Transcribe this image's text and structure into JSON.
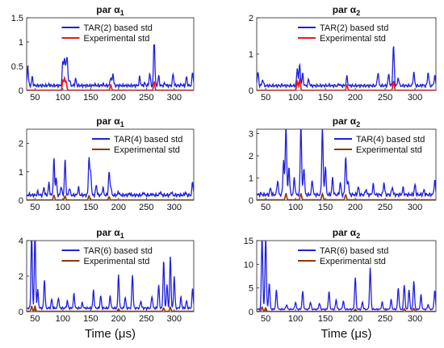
{
  "figure": {
    "xlabel": "Time (μs)",
    "colors": {
      "model": "#1f1fe0",
      "exp_red": "#e8181c",
      "exp_brown": "#8a3a0a",
      "axis": "#222222"
    }
  },
  "chart_data": [
    {
      "type": "line",
      "title": "par α1",
      "xlim": [
        35,
        335
      ],
      "ylim": [
        0,
        1.5
      ],
      "yticks": [
        0,
        0.5,
        1,
        1.5
      ],
      "xticks": [
        50,
        100,
        150,
        200,
        250,
        300
      ],
      "legend": {
        "position": "top-center",
        "entries": [
          "TAR(2) based std",
          "Experimental std"
        ]
      },
      "series": [
        {
          "name": "TAR(2) based std",
          "color": "#1f1fe0",
          "baseline": 0.1,
          "peaks": [
            [
              37,
              0.5
            ],
            [
              45,
              0.28
            ],
            [
              55,
              0.1
            ],
            [
              75,
              0.12
            ],
            [
              100,
              0.6
            ],
            [
              103,
              0.65
            ],
            [
              106,
              0.5
            ],
            [
              108,
              0.55
            ],
            [
              112,
              0.22
            ],
            [
              123,
              0.24
            ],
            [
              130,
              0.1
            ],
            [
              157,
              0.12
            ],
            [
              172,
              0.13
            ],
            [
              186,
              0.28
            ],
            [
              190,
              0.35
            ],
            [
              212,
              0.1
            ],
            [
              238,
              0.28
            ],
            [
              247,
              0.15
            ],
            [
              256,
              0.35
            ],
            [
              264,
              1.12
            ],
            [
              272,
              0.3
            ],
            [
              283,
              0.15
            ],
            [
              298,
              0.35
            ],
            [
              313,
              0.12
            ],
            [
              322,
              0.28
            ],
            [
              333,
              0.38
            ]
          ]
        },
        {
          "name": "Experimental std",
          "color": "#e8181c",
          "baseline": 0.005,
          "peaks": [
            [
              100,
              0.2
            ],
            [
              103,
              0.25
            ],
            [
              106,
              0.18
            ],
            [
              186,
              0.12
            ],
            [
              264,
              0.18
            ]
          ]
        }
      ]
    },
    {
      "type": "line",
      "title": "par α2",
      "xlim": [
        35,
        335
      ],
      "ylim": [
        0,
        2
      ],
      "yticks": [
        0,
        1,
        2
      ],
      "xticks": [
        50,
        100,
        150,
        200,
        250,
        300
      ],
      "legend": {
        "position": "top-center",
        "entries": [
          "TAR(2) based std",
          "Experimental std"
        ]
      },
      "series": [
        {
          "name": "TAR(2) based std",
          "color": "#1f1fe0",
          "baseline": 0.13,
          "peaks": [
            [
              37,
              0.5
            ],
            [
              45,
              0.3
            ],
            [
              78,
              0.15
            ],
            [
              103,
              0.6
            ],
            [
              107,
              0.7
            ],
            [
              112,
              0.45
            ],
            [
              122,
              0.3
            ],
            [
              157,
              0.15
            ],
            [
              173,
              0.18
            ],
            [
              186,
              0.38
            ],
            [
              212,
              0.12
            ],
            [
              238,
              0.5
            ],
            [
              256,
              0.45
            ],
            [
              264,
              1.25
            ],
            [
              272,
              0.35
            ],
            [
              298,
              0.5
            ],
            [
              313,
              0.15
            ],
            [
              322,
              0.5
            ],
            [
              333,
              0.4
            ]
          ]
        },
        {
          "name": "Experimental std",
          "color": "#e8181c",
          "baseline": 0.005,
          "peaks": [
            [
              103,
              0.25
            ],
            [
              107,
              0.3
            ],
            [
              186,
              0.15
            ],
            [
              264,
              0.25
            ]
          ]
        }
      ]
    },
    {
      "type": "line",
      "title": "par α1",
      "xlim": [
        35,
        335
      ],
      "ylim": [
        0,
        2.5
      ],
      "yticks": [
        0,
        1,
        2
      ],
      "xticks": [
        50,
        100,
        150,
        200,
        250,
        300
      ],
      "legend": {
        "position": "top-right",
        "entries": [
          "TAR(4) based std",
          "Experimental std"
        ]
      },
      "series": [
        {
          "name": "TAR(4) based std",
          "color": "#1f1fe0",
          "baseline": 0.18,
          "peaks": [
            [
              40,
              0.2
            ],
            [
              55,
              0.3
            ],
            [
              66,
              0.45
            ],
            [
              75,
              0.6
            ],
            [
              84,
              1.45
            ],
            [
              88,
              0.8
            ],
            [
              97,
              0.5
            ],
            [
              104,
              1.42
            ],
            [
              112,
              0.45
            ],
            [
              128,
              0.45
            ],
            [
              147,
              1.52
            ],
            [
              150,
              1.0
            ],
            [
              160,
              0.55
            ],
            [
              172,
              0.45
            ],
            [
              183,
              1.0
            ],
            [
              186,
              0.5
            ],
            [
              200,
              0.3
            ],
            [
              220,
              0.25
            ],
            [
              245,
              0.28
            ],
            [
              260,
              0.22
            ],
            [
              275,
              0.3
            ],
            [
              295,
              0.3
            ],
            [
              320,
              0.28
            ],
            [
              333,
              0.65
            ]
          ]
        },
        {
          "name": "Experimental std",
          "color": "#8a3a0a",
          "baseline": 0.01,
          "peaks": [
            [
              84,
              0.18
            ],
            [
              104,
              0.15
            ],
            [
              147,
              0.16
            ],
            [
              183,
              0.12
            ]
          ]
        }
      ]
    },
    {
      "type": "line",
      "title": "par α2",
      "xlim": [
        35,
        335
      ],
      "ylim": [
        0,
        3.2
      ],
      "yticks": [
        0,
        1,
        2,
        3
      ],
      "xticks": [
        50,
        100,
        150,
        200,
        250,
        300
      ],
      "legend": {
        "position": "top-right",
        "entries": [
          "TAR(4) based std",
          "Experimental std"
        ]
      },
      "series": [
        {
          "name": "TAR(4) based std",
          "color": "#1f1fe0",
          "baseline": 0.25,
          "peaks": [
            [
              42,
              0.3
            ],
            [
              58,
              0.55
            ],
            [
              70,
              0.9
            ],
            [
              80,
              1.8
            ],
            [
              84,
              3.4
            ],
            [
              89,
              1.5
            ],
            [
              98,
              1.0
            ],
            [
              109,
              3.4
            ],
            [
              114,
              1.5
            ],
            [
              128,
              0.9
            ],
            [
              145,
              3.3
            ],
            [
              150,
              1.5
            ],
            [
              162,
              1.0
            ],
            [
              175,
              0.8
            ],
            [
              184,
              2.0
            ],
            [
              188,
              0.9
            ],
            [
              205,
              0.6
            ],
            [
              218,
              0.5
            ],
            [
              230,
              0.7
            ],
            [
              248,
              0.8
            ],
            [
              262,
              0.6
            ],
            [
              280,
              0.55
            ],
            [
              300,
              0.7
            ],
            [
              315,
              0.45
            ],
            [
              333,
              0.9
            ]
          ]
        },
        {
          "name": "Experimental std",
          "color": "#8a3a0a",
          "baseline": 0.02,
          "peaks": [
            [
              84,
              0.3
            ],
            [
              109,
              0.3
            ],
            [
              145,
              0.3
            ],
            [
              184,
              0.25
            ]
          ]
        }
      ]
    },
    {
      "type": "line",
      "title": "par α1",
      "xlim": [
        35,
        335
      ],
      "ylim": [
        0,
        4
      ],
      "yticks": [
        0,
        2,
        4
      ],
      "xticks": [
        50,
        100,
        150,
        200,
        250,
        300
      ],
      "legend": {
        "position": "top-center",
        "entries": [
          "TAR(6) based std",
          "Experimental std"
        ]
      },
      "series": [
        {
          "name": "TAR(6) based std",
          "color": "#1f1fe0",
          "baseline": 0.2,
          "peaks": [
            [
              44,
              4.5
            ],
            [
              50,
              4.5
            ],
            [
              55,
              1.2
            ],
            [
              67,
              1.8
            ],
            [
              80,
              0.7
            ],
            [
              92,
              0.8
            ],
            [
              108,
              0.6
            ],
            [
              120,
              1.0
            ],
            [
              135,
              0.5
            ],
            [
              155,
              1.2
            ],
            [
              168,
              0.9
            ],
            [
              185,
              0.9
            ],
            [
              200,
              2.1
            ],
            [
              212,
              0.8
            ],
            [
              225,
              2.1
            ],
            [
              240,
              0.6
            ],
            [
              260,
              0.9
            ],
            [
              272,
              1.5
            ],
            [
              281,
              2.9
            ],
            [
              287,
              1.5
            ],
            [
              293,
              3.1
            ],
            [
              300,
              2.0
            ],
            [
              312,
              0.8
            ],
            [
              322,
              0.6
            ],
            [
              333,
              1.3
            ]
          ]
        },
        {
          "name": "Experimental std",
          "color": "#8a3a0a",
          "baseline": 0.02,
          "peaks": [
            [
              44,
              0.3
            ],
            [
              50,
              0.3
            ],
            [
              200,
              0.15
            ],
            [
              281,
              0.2
            ],
            [
              293,
              0.25
            ]
          ]
        }
      ]
    },
    {
      "type": "line",
      "title": "par α2",
      "xlim": [
        35,
        335
      ],
      "ylim": [
        0,
        15
      ],
      "yticks": [
        0,
        5,
        10,
        15
      ],
      "xticks": [
        50,
        100,
        150,
        200,
        250,
        300
      ],
      "legend": {
        "position": "top-center",
        "entries": [
          "TAR(6) based std",
          "Experimental std"
        ]
      },
      "series": [
        {
          "name": "TAR(6) based std",
          "color": "#1f1fe0",
          "baseline": 0.5,
          "peaks": [
            [
              44,
              16
            ],
            [
              50,
              16
            ],
            [
              56,
              6
            ],
            [
              68,
              4.5
            ],
            [
              85,
              1.5
            ],
            [
              100,
              2.0
            ],
            [
              112,
              4.2
            ],
            [
              125,
              2.0
            ],
            [
              140,
              1.8
            ],
            [
              156,
              4.2
            ],
            [
              168,
              2.5
            ],
            [
              180,
              2.2
            ],
            [
              200,
              7.2
            ],
            [
              212,
              2.0
            ],
            [
              225,
              9.2
            ],
            [
              245,
              2.0
            ],
            [
              260,
              2.5
            ],
            [
              272,
              5.0
            ],
            [
              282,
              5.8
            ],
            [
              290,
              4.5
            ],
            [
              298,
              6.5
            ],
            [
              310,
              3.5
            ],
            [
              322,
              1.5
            ],
            [
              333,
              4.5
            ]
          ]
        },
        {
          "name": "Experimental std",
          "color": "#8a3a0a",
          "baseline": 0.05,
          "peaks": [
            [
              44,
              1.0
            ],
            [
              50,
              0.8
            ],
            [
              200,
              0.5
            ],
            [
              282,
              0.6
            ],
            [
              298,
              0.7
            ]
          ]
        }
      ]
    }
  ]
}
